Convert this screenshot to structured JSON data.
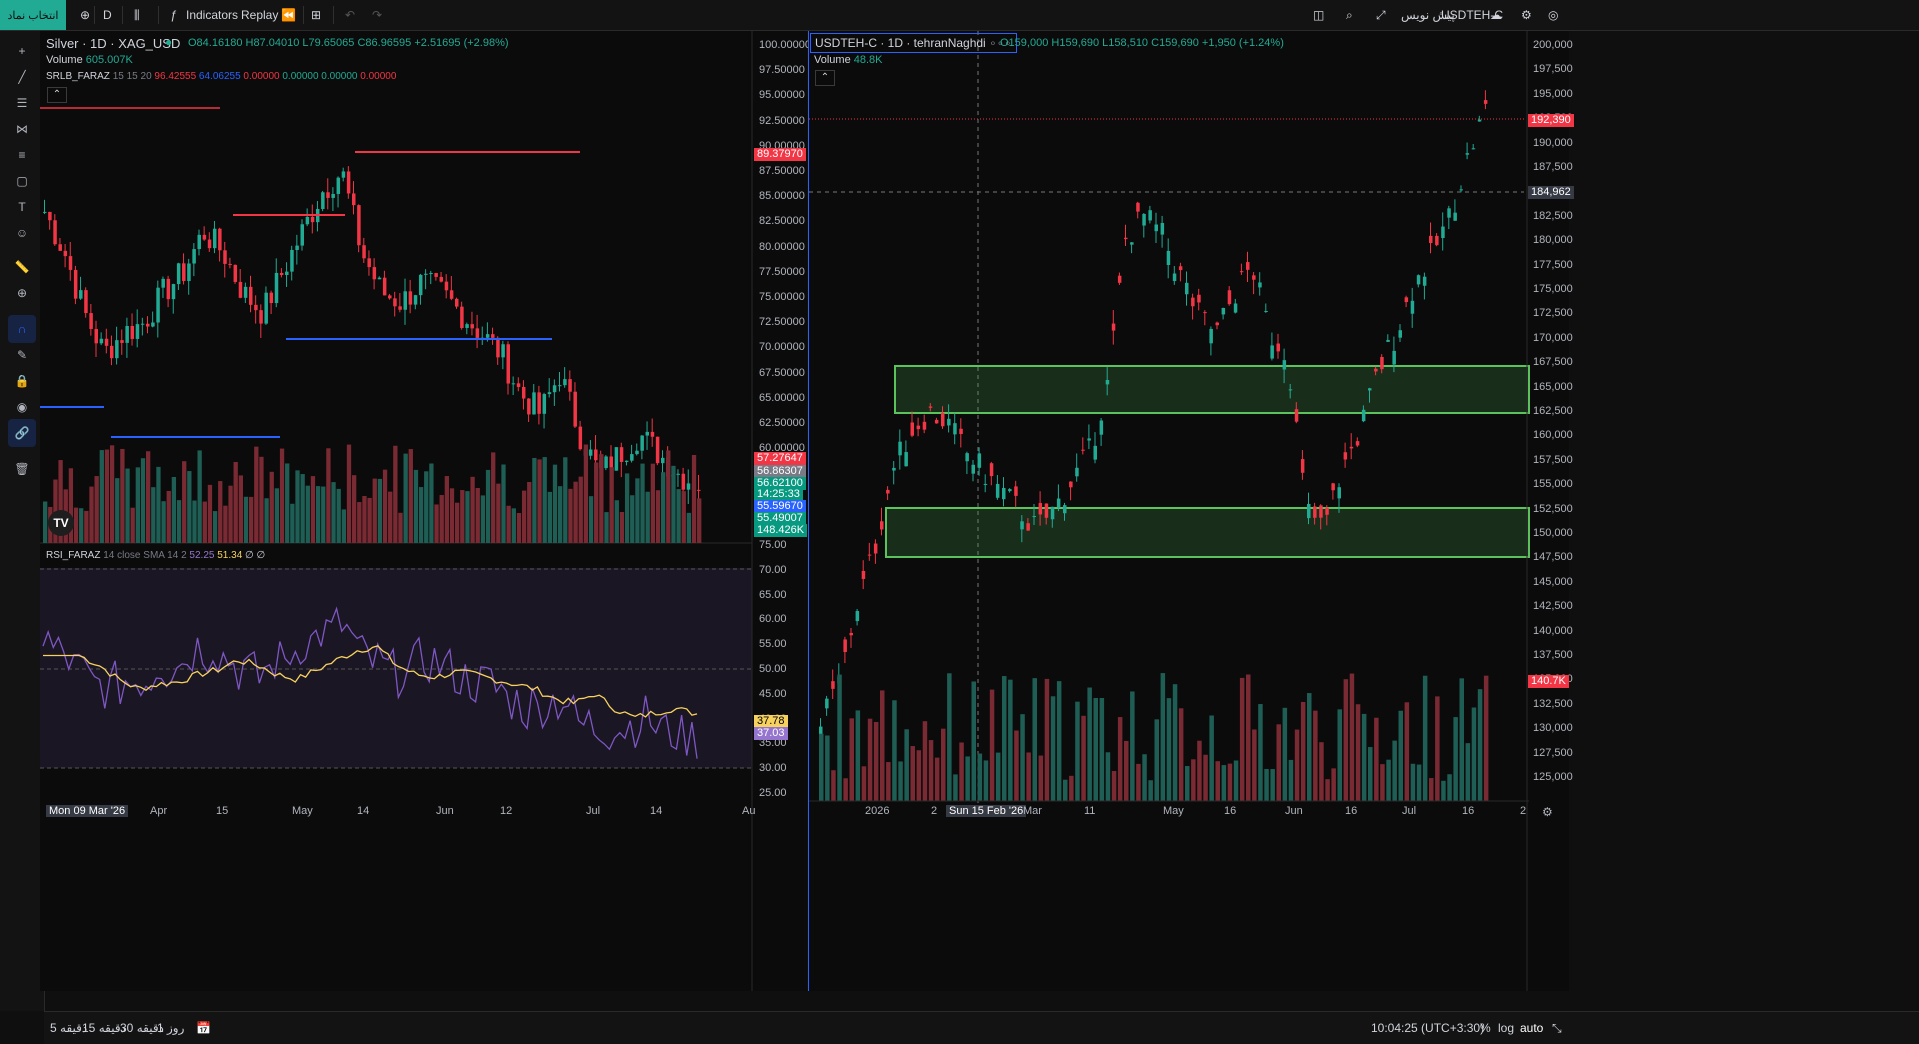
{
  "topbar": {
    "symbol_search_label": "انتخاب نماد",
    "interval": "D",
    "indicators_label": "Indicators",
    "replay_label": "Replay",
    "right_symbol": "USDTEH-C",
    "right_symbol_prefix": "پیش نویس"
  },
  "left_chart": {
    "title": "Silver · 1D · XAG_USD",
    "ohlc": {
      "o": "O84.16180",
      "h": "H87.04010",
      "l": "L79.65065",
      "c": "C86.96595",
      "chg": "+2.51695 (+2.98%)"
    },
    "volume_label": "Volume",
    "volume_value": "605.007K",
    "indicator_name": "SRLB_FARAZ",
    "indicator_params": "15 15 20",
    "indicator_values": [
      "96.42555",
      "64.06255",
      "0.00000",
      "0.00000",
      "0.00000",
      "0.00000"
    ],
    "price_axis": [
      "100.00000",
      "97.50000",
      "95.00000",
      "92.50000",
      "90.00000",
      "87.50000",
      "85.00000",
      "82.50000",
      "80.00000",
      "77.50000",
      "75.00000",
      "72.50000",
      "70.00000",
      "67.50000",
      "65.00000",
      "62.50000",
      "60.00000"
    ],
    "tags": [
      {
        "text": "89.37970",
        "color": "#f23645"
      },
      {
        "text": "57.27647",
        "color": "#f23645"
      },
      {
        "text": "56.86307",
        "color": "#787b86"
      },
      {
        "text": "56.62100",
        "color": "#089981"
      },
      {
        "text": "14:25:33",
        "color": "#089981"
      },
      {
        "text": "55.59670",
        "color": "#2962ff"
      },
      {
        "text": "55.49007",
        "color": "#089981"
      },
      {
        "text": "148.426K",
        "color": "#089981"
      }
    ],
    "rsi": {
      "name": "RSI_FARAZ",
      "params": "14 close SMA 14 2",
      "v1": "52.25",
      "v2": "51.34",
      "v3": "∅ ∅",
      "axis": [
        "75.00",
        "70.00",
        "65.00",
        "60.00",
        "55.00",
        "50.00",
        "45.00",
        "40.00",
        "35.00",
        "30.00",
        "25.00"
      ],
      "tag1": "37.78",
      "tag2": "37.03"
    },
    "time_axis": [
      "Mon 09 Mar '26",
      "Apr",
      "15",
      "May",
      "14",
      "Jun",
      "12",
      "Jul",
      "14",
      "Au"
    ]
  },
  "right_chart": {
    "title": "USDTEH-C · 1D · tehranNaghdi",
    "ohlc": {
      "o": "O159,000",
      "h": "H159,690",
      "l": "L158,510",
      "c": "C159,690",
      "chg": "+1,950 (+1.24%)"
    },
    "volume_label": "Volume",
    "volume_value": "48.8K",
    "price_axis": [
      "200,000",
      "197,500",
      "195,000",
      "192,500",
      "190,000",
      "187,500",
      "185,000",
      "182,500",
      "180,000",
      "177,500",
      "175,000",
      "172,500",
      "170,000",
      "167,500",
      "165,000",
      "162,500",
      "160,000",
      "157,500",
      "155,000",
      "152,500",
      "150,000",
      "147,500",
      "145,000",
      "142,500",
      "140,000",
      "137,500",
      "135,000",
      "132,500",
      "130,000",
      "127,500",
      "125,000"
    ],
    "tag_price": "192,390",
    "tag_cross": "184,962",
    "tag_volume": "140.7K",
    "time_axis": [
      "2026",
      "2",
      "Sun 15 Feb '26",
      "Mar",
      "11",
      "May",
      "16",
      "Jun",
      "16",
      "Jul",
      "16",
      "2"
    ]
  },
  "bottombar": {
    "intervals": [
      "5 دقیقه",
      "15 دقیقه",
      "30 دقیقه",
      "1 روز"
    ],
    "clock": "10:04:25 (UTC+3:30)",
    "pct": "%",
    "log": "log",
    "auto": "auto"
  }
}
